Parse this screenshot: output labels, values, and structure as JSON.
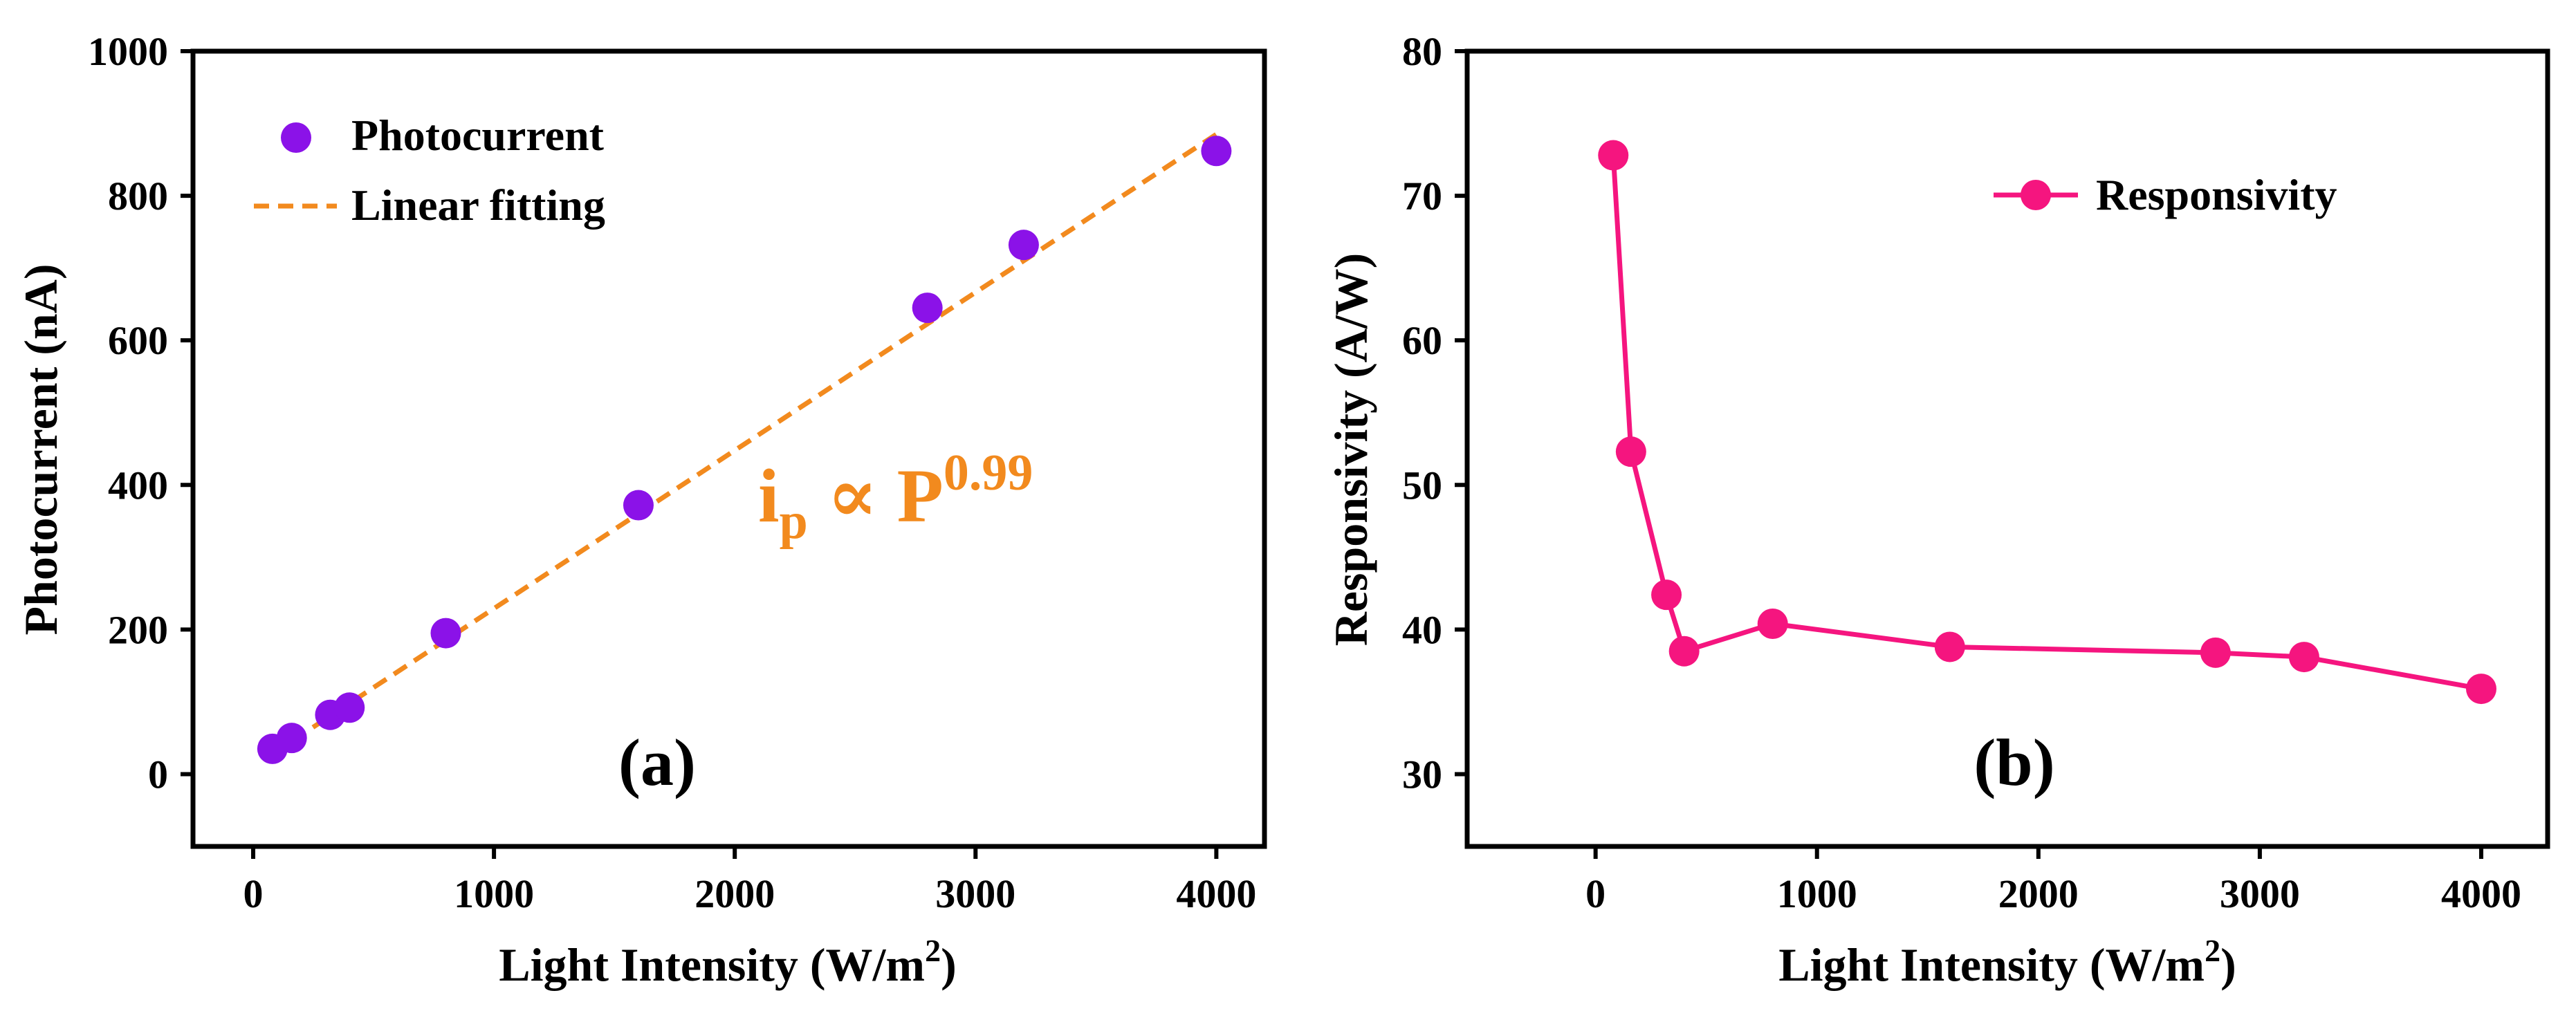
{
  "chart_data": [
    {
      "type": "scatter",
      "panel_label": "(a)",
      "xlabel": "Light Intensity (W/m",
      "xlabel_superscript": "2",
      "xlabel_close": ")",
      "ylabel": "Photocurrent (nA)",
      "xlim": [
        -250,
        4200
      ],
      "ylim": [
        -100,
        1000
      ],
      "xticks": [
        0,
        1000,
        2000,
        3000,
        4000
      ],
      "yticks": [
        0,
        200,
        400,
        600,
        800,
        1000
      ],
      "grid": false,
      "legend_position": "top-left",
      "series": [
        {
          "name": "Photocurrent",
          "kind": "scatter",
          "color": "#8b12e8",
          "x": [
            80,
            160,
            320,
            400,
            800,
            1600,
            2800,
            3200,
            4000
          ],
          "y": [
            35,
            50,
            82,
            92,
            195,
            372,
            645,
            732,
            862
          ]
        },
        {
          "name": "Linear fitting",
          "kind": "line",
          "style": "dashed",
          "color": "#f28a1e",
          "x": [
            80,
            4000
          ],
          "y": [
            28,
            885
          ]
        }
      ],
      "annotation": {
        "base": "i",
        "subscript": "p",
        "operator": " ∝ P",
        "superscript": "0.99",
        "color": "#f28a1e"
      }
    },
    {
      "type": "line",
      "panel_label": "(b)",
      "xlabel": "Light Intensity (W/m",
      "xlabel_superscript": "2",
      "xlabel_close": ")",
      "ylabel": "Responsivity (A/W)",
      "xlim": [
        -580,
        4300
      ],
      "ylim": [
        25,
        80
      ],
      "xticks": [
        0,
        1000,
        2000,
        3000,
        4000
      ],
      "yticks": [
        30,
        40,
        50,
        60,
        70,
        80
      ],
      "grid": false,
      "legend_position": "top-right",
      "series": [
        {
          "name": "Responsivity",
          "kind": "line-marker",
          "color": "#f5157f",
          "x": [
            80,
            160,
            320,
            400,
            800,
            1600,
            2800,
            3200,
            4000
          ],
          "y": [
            72.8,
            52.3,
            42.4,
            38.5,
            40.4,
            38.8,
            38.4,
            38.1,
            35.9
          ]
        }
      ]
    }
  ]
}
